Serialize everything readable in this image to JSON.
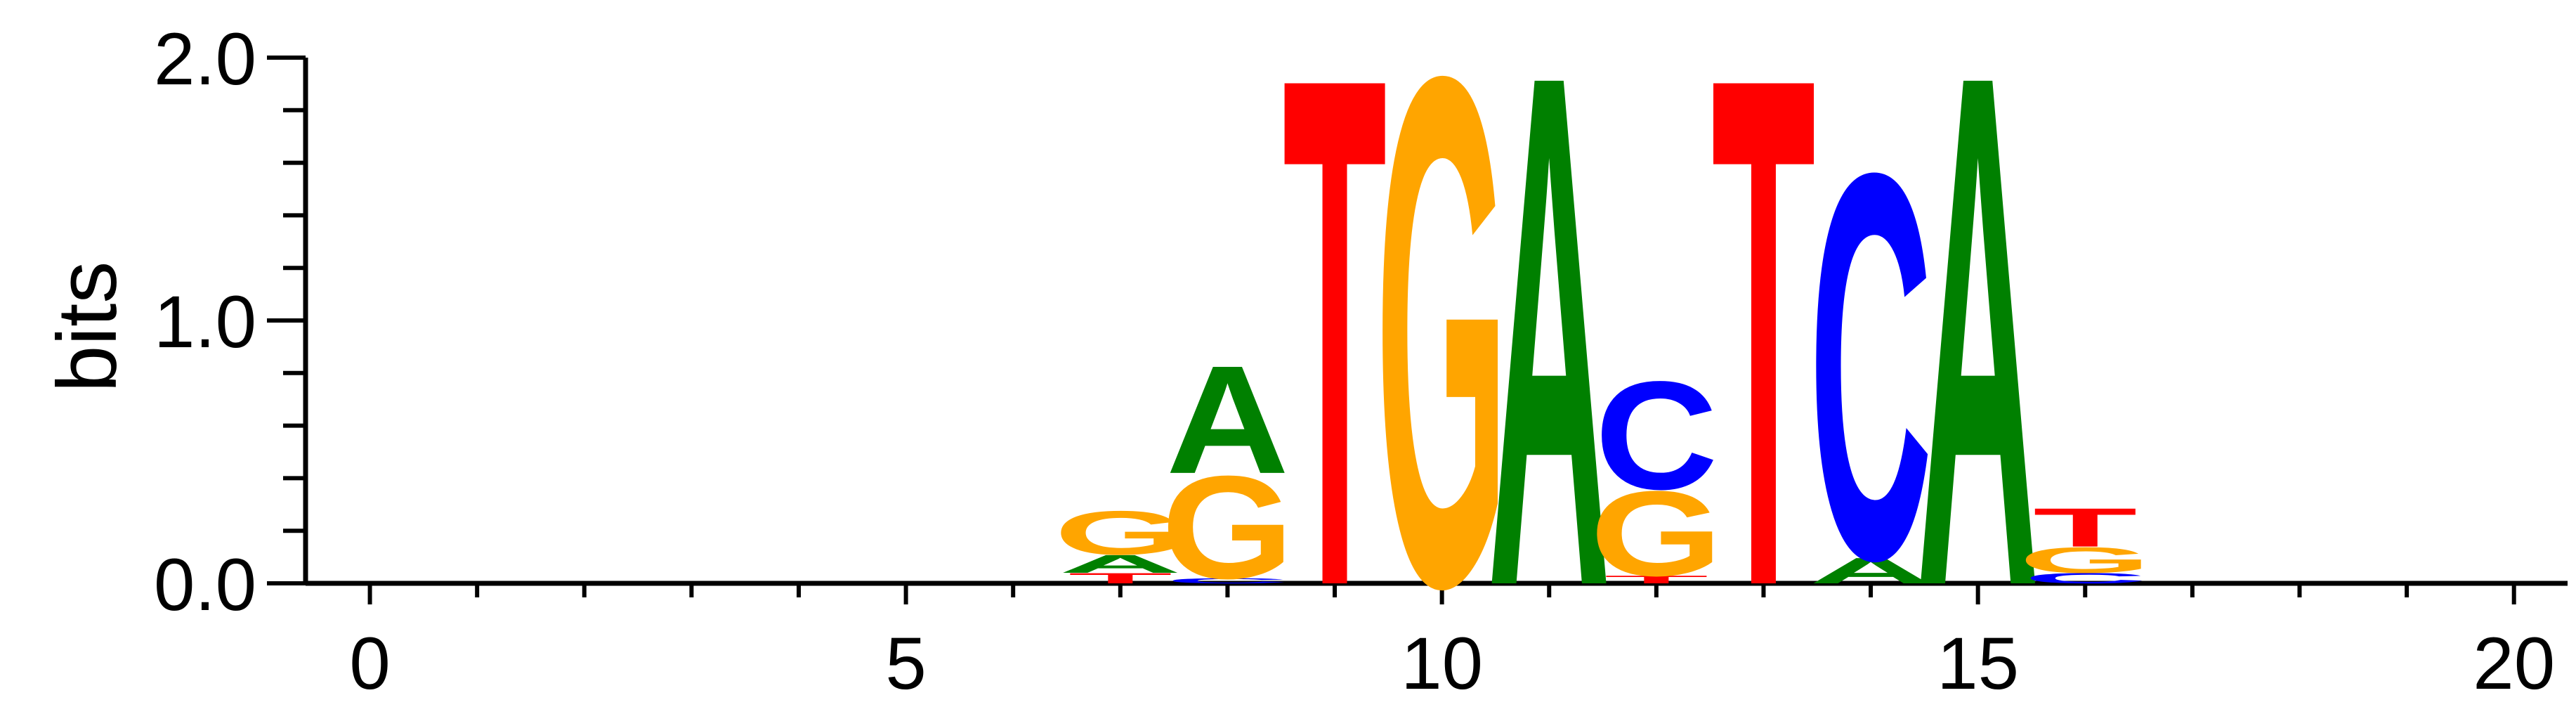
{
  "chart_data": {
    "type": "sequence-logo",
    "ylabel": "bits",
    "xlim": [
      -0.6,
      20.5
    ],
    "ylim": [
      0,
      2.0
    ],
    "x_ticks": [
      0,
      5,
      10,
      15,
      20
    ],
    "y_ticks": [
      "0.0",
      "1.0",
      "2.0"
    ],
    "colors": {
      "A": "#008000",
      "C": "#0000ff",
      "G": "#ffa500",
      "T": "#ff0000"
    },
    "positions": [
      {
        "x": 7,
        "letters": [
          {
            "base": "T",
            "bits": 0.04
          },
          {
            "base": "A",
            "bits": 0.07
          },
          {
            "base": "G",
            "bits": 0.17
          }
        ]
      },
      {
        "x": 8,
        "letters": [
          {
            "base": "C",
            "bits": 0.02
          },
          {
            "base": "G",
            "bits": 0.4
          },
          {
            "base": "A",
            "bits": 0.42
          }
        ]
      },
      {
        "x": 9,
        "letters": [
          {
            "base": "T",
            "bits": 1.98
          }
        ]
      },
      {
        "x": 10,
        "letters": [
          {
            "base": "G",
            "bits": 1.98
          }
        ]
      },
      {
        "x": 11,
        "letters": [
          {
            "base": "A",
            "bits": 1.99
          }
        ]
      },
      {
        "x": 12,
        "letters": [
          {
            "base": "T",
            "bits": 0.03
          },
          {
            "base": "G",
            "bits": 0.33
          },
          {
            "base": "C",
            "bits": 0.42
          }
        ]
      },
      {
        "x": 13,
        "letters": [
          {
            "base": "T",
            "bits": 1.98
          }
        ]
      },
      {
        "x": 14,
        "letters": [
          {
            "base": "A",
            "bits": 0.1
          },
          {
            "base": "C",
            "bits": 1.5
          }
        ]
      },
      {
        "x": 15,
        "letters": [
          {
            "base": "A",
            "bits": 1.99
          }
        ]
      },
      {
        "x": 16,
        "letters": [
          {
            "base": "C",
            "bits": 0.04
          },
          {
            "base": "G",
            "bits": 0.1
          },
          {
            "base": "T",
            "bits": 0.15
          }
        ]
      }
    ]
  }
}
